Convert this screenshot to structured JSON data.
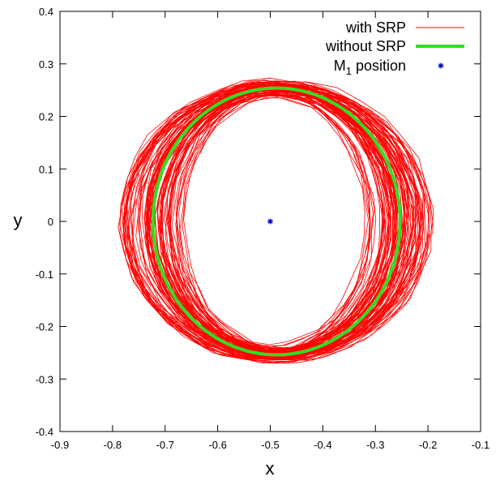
{
  "chart_data": {
    "type": "line",
    "title": "",
    "xlabel": "x",
    "ylabel": "y",
    "xlim": [
      -0.9,
      -0.1
    ],
    "ylim": [
      -0.4,
      0.4
    ],
    "xticks": [
      -0.9,
      -0.8,
      -0.7,
      -0.6,
      -0.5,
      -0.4,
      -0.3,
      -0.2,
      -0.1
    ],
    "yticks": [
      -0.4,
      -0.3,
      -0.2,
      -0.1,
      0,
      0.1,
      0.2,
      0.3,
      0.4
    ],
    "xtick_labels": [
      "-0.9",
      "-0.8",
      "-0.7",
      "-0.6",
      "-0.5",
      "-0.4",
      "-0.3",
      "-0.2",
      "-0.1"
    ],
    "ytick_labels": [
      "-0.4",
      "-0.3",
      "-0.2",
      "-0.1",
      "0",
      "0.1",
      "0.2",
      "0.3",
      "0.4"
    ],
    "grid": false,
    "legend_position": "top-right",
    "series": [
      {
        "name": "with SRP",
        "color": "#ff0000",
        "style": "thin-line",
        "kind": "orbit-band",
        "center": [
          -0.49,
          0
        ],
        "x_extent": [
          -0.79,
          -0.195
        ],
        "y_extent": [
          -0.272,
          0.265
        ]
      },
      {
        "name": "without SRP",
        "color": "#33dd22",
        "style": "thick-line",
        "kind": "orbit",
        "center": [
          -0.488,
          0
        ],
        "x_extent": [
          -0.723,
          -0.253
        ],
        "y_extent": [
          -0.254,
          0.254
        ]
      },
      {
        "name": "M",
        "name_subscript": "1",
        "name_suffix": " position",
        "color": "#0000cc",
        "style": "star-marker",
        "kind": "point",
        "x": [
          -0.5
        ],
        "y": [
          0
        ]
      }
    ]
  }
}
